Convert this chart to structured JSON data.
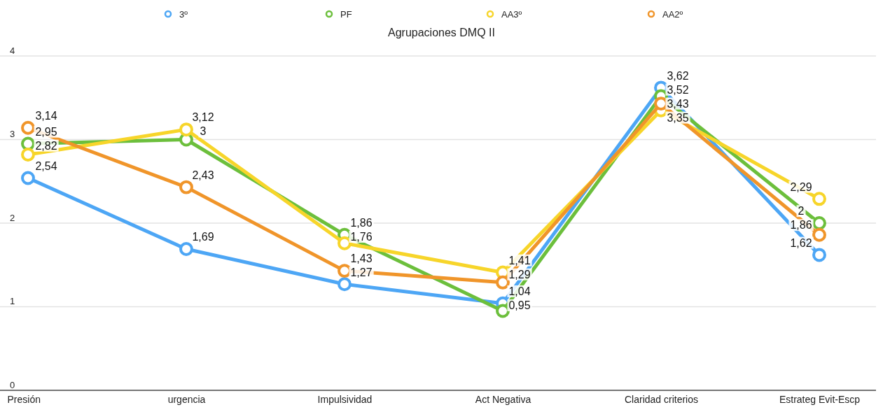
{
  "chart_data": {
    "type": "line",
    "title": "Agrupaciones DMQ II",
    "categories": [
      "Presión",
      "urgencia",
      "Impulsividad",
      "Act Negativa",
      "Claridad criterios",
      "Estrateg Evit-Escp"
    ],
    "ylim": [
      0,
      4
    ],
    "yticks": [
      0,
      1,
      2,
      3,
      4
    ],
    "grid": "y",
    "legend": "top",
    "marker": "circle",
    "line_style": "solid",
    "series": [
      {
        "name": "3º",
        "color": "#4da6f5",
        "values": [
          2.54,
          1.69,
          1.27,
          1.04,
          3.62,
          1.62
        ],
        "value_labels": [
          "2,54",
          "1,69",
          "1,27",
          "1,04",
          "3,62",
          "1,62"
        ]
      },
      {
        "name": "PF",
        "color": "#6cbf3c",
        "values": [
          2.95,
          3,
          1.86,
          0.95,
          3.52,
          2
        ],
        "value_labels": [
          "2,95",
          "3",
          "1,86",
          "0,95",
          "3,52",
          "2"
        ]
      },
      {
        "name": "AA3º",
        "color": "#f7d52a",
        "values": [
          2.82,
          3.12,
          1.76,
          1.41,
          3.35,
          2.29
        ],
        "value_labels": [
          "2,82",
          "3,12",
          "1,76",
          "1,41",
          "3,35",
          "2,29"
        ]
      },
      {
        "name": "AA2º",
        "color": "#f0952a",
        "values": [
          3.14,
          2.43,
          1.43,
          1.29,
          3.43,
          1.86
        ],
        "value_labels": [
          "3,14",
          "2,43",
          "1,43",
          "1,29",
          "3,43",
          "1,86"
        ]
      }
    ]
  }
}
